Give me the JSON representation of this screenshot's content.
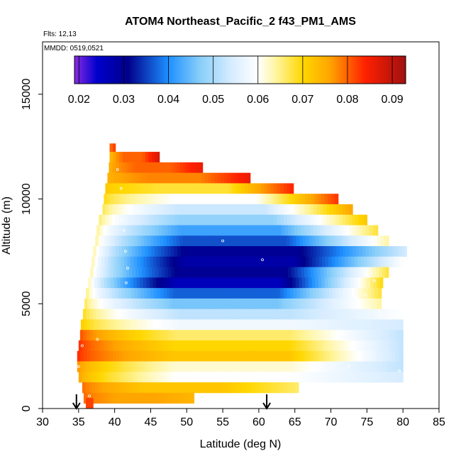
{
  "chart_data": {
    "type": "heatmap",
    "title": "ATOM4 Northeast_Pacific_2 f43_PM1_AMS",
    "annotations": [
      "Flts: 12,13",
      "MMDD: 0519,0521"
    ],
    "xlabel": "Latitude (deg N)",
    "ylabel": "Altitude (m)",
    "xlim": [
      30,
      85
    ],
    "ylim": [
      0,
      17500
    ],
    "xticks": [
      30,
      35,
      40,
      45,
      50,
      55,
      60,
      65,
      70,
      75,
      80,
      85
    ],
    "yticks": [
      0,
      5000,
      10000,
      15000
    ],
    "colorbar": {
      "range": [
        0.019,
        0.093
      ],
      "ticks": [
        "0.02",
        "0.03",
        "0.04",
        "0.05",
        "0.06",
        "0.07",
        "0.08",
        "0.09"
      ],
      "stops": [
        [
          0.019,
          "#8a2be2"
        ],
        [
          0.024,
          "#0000cd"
        ],
        [
          0.031,
          "#00008b"
        ],
        [
          0.04,
          "#1e90ff"
        ],
        [
          0.047,
          "#87cefa"
        ],
        [
          0.054,
          "#d6ecff"
        ],
        [
          0.06,
          "#ffffff"
        ],
        [
          0.064,
          "#fff5a0"
        ],
        [
          0.07,
          "#ffd700"
        ],
        [
          0.076,
          "#ffa500"
        ],
        [
          0.084,
          "#ff2000"
        ],
        [
          0.093,
          "#a01010"
        ]
      ]
    },
    "profile_arrows_lat": [
      34.7,
      61.1
    ],
    "bands": [
      {
        "alt": 12400,
        "lat0": 39.3,
        "lat1": 40.1,
        "inner": 0.08,
        "peak": 0.08,
        "outer": 0.085
      },
      {
        "alt": 12000,
        "lat0": 39.3,
        "lat1": 46.2,
        "inner": 0.072,
        "peak": 0.08,
        "outer": 0.088
      },
      {
        "alt": 11500,
        "lat0": 39.2,
        "lat1": 52.2,
        "inner": 0.074,
        "peak": 0.08,
        "outer": 0.086
      },
      {
        "alt": 11000,
        "lat0": 39.0,
        "lat1": 58.8,
        "inner": 0.074,
        "peak": 0.078,
        "outer": 0.086
      },
      {
        "alt": 10500,
        "lat0": 38.7,
        "lat1": 64.8,
        "inner": 0.072,
        "peak": 0.068,
        "outer": 0.084
      },
      {
        "alt": 10000,
        "lat0": 38.5,
        "lat1": 71.0,
        "inner": 0.07,
        "peak": 0.06,
        "outer": 0.083
      },
      {
        "alt": 9500,
        "lat0": 38.3,
        "lat1": 73.0,
        "inner": 0.068,
        "peak": 0.053,
        "outer": 0.076
      },
      {
        "alt": 9000,
        "lat0": 37.8,
        "lat1": 75.0,
        "inner": 0.067,
        "peak": 0.048,
        "outer": 0.072
      },
      {
        "alt": 8500,
        "lat0": 37.5,
        "lat1": 76.5,
        "inner": 0.066,
        "peak": 0.042,
        "outer": 0.068
      },
      {
        "alt": 8000,
        "lat0": 37.3,
        "lat1": 78.0,
        "inner": 0.066,
        "peak": 0.036,
        "outer": 0.064
      },
      {
        "alt": 7500,
        "lat0": 37.0,
        "lat1": 80.5,
        "inner": 0.066,
        "peak": 0.03,
        "outer": 0.054
      },
      {
        "alt": 7000,
        "lat0": 36.8,
        "lat1": 80.0,
        "inner": 0.066,
        "peak": 0.028,
        "outer": 0.06
      },
      {
        "alt": 6500,
        "lat0": 36.6,
        "lat1": 78.0,
        "inner": 0.066,
        "peak": 0.03,
        "outer": 0.068
      },
      {
        "alt": 6000,
        "lat0": 36.3,
        "lat1": 77.2,
        "inner": 0.066,
        "peak": 0.026,
        "outer": 0.07
      },
      {
        "alt": 5500,
        "lat0": 36.0,
        "lat1": 77.0,
        "inner": 0.067,
        "peak": 0.037,
        "outer": 0.068
      },
      {
        "alt": 5000,
        "lat0": 35.8,
        "lat1": 77.0,
        "inner": 0.068,
        "peak": 0.046,
        "outer": 0.064
      },
      {
        "alt": 4500,
        "lat0": 35.6,
        "lat1": 80.0,
        "inner": 0.07,
        "peak": 0.052,
        "outer": 0.06
      },
      {
        "alt": 4000,
        "lat0": 35.3,
        "lat1": 80.0,
        "inner": 0.072,
        "peak": 0.058,
        "outer": 0.054
      },
      {
        "alt": 3500,
        "lat0": 35.2,
        "lat1": 80.0,
        "inner": 0.082,
        "peak": 0.066,
        "outer": 0.052
      },
      {
        "alt": 3000,
        "lat0": 35.0,
        "lat1": 80.0,
        "inner": 0.084,
        "peak": 0.07,
        "outer": 0.052
      },
      {
        "alt": 2500,
        "lat0": 34.8,
        "lat1": 80.0,
        "inner": 0.084,
        "peak": 0.072,
        "outer": 0.052
      },
      {
        "alt": 2000,
        "lat0": 34.8,
        "lat1": 80.0,
        "inner": 0.078,
        "peak": 0.062,
        "outer": 0.052
      },
      {
        "alt": 1500,
        "lat0": 35.0,
        "lat1": 80.0,
        "inner": 0.077,
        "peak": 0.06,
        "outer": 0.054
      },
      {
        "alt": 1000,
        "lat0": 35.5,
        "lat1": 65.5,
        "inner": 0.08,
        "peak": 0.072,
        "outer": 0.066
      },
      {
        "alt": 500,
        "lat0": 35.7,
        "lat1": 51.0,
        "inner": 0.08,
        "peak": 0.076,
        "outer": 0.074
      },
      {
        "alt": 250,
        "lat0": 36.0,
        "lat1": 37.0,
        "inner": 0.082,
        "peak": 0.082,
        "outer": 0.082
      }
    ]
  }
}
